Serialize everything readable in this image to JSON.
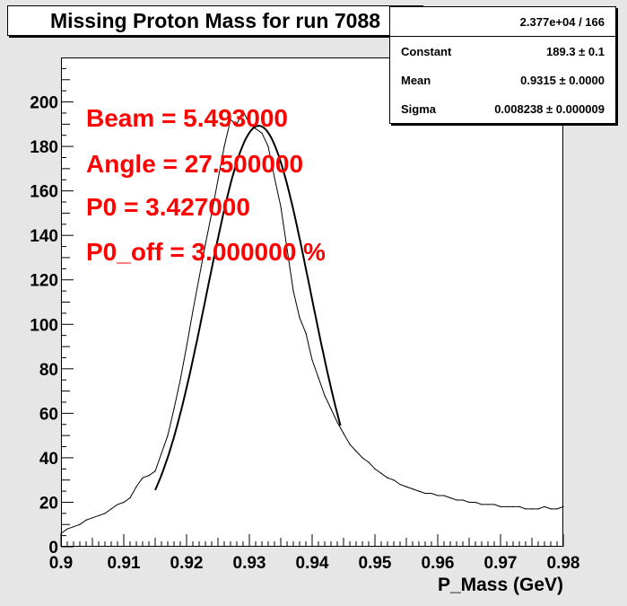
{
  "chart_data": {
    "type": "line",
    "title": "Missing Proton Mass for run 7088",
    "xlabel": "P_Mass (GeV)",
    "ylabel": "",
    "xlim": [
      0.9,
      0.98
    ],
    "ylim": [
      0,
      220
    ],
    "x_ticks": [
      "0.9",
      "0.91",
      "0.92",
      "0.93",
      "0.94",
      "0.95",
      "0.96",
      "0.97",
      "0.98"
    ],
    "y_ticks": [
      "0",
      "20",
      "40",
      "60",
      "80",
      "100",
      "120",
      "140",
      "160",
      "180",
      "200"
    ],
    "stats": {
      "entries": "2.377e+04 / 166",
      "rows": [
        {
          "label": "Constant",
          "value": "189.3 ± 0.1"
        },
        {
          "label": "Mean",
          "value": "0.9315 ± 0.0000"
        },
        {
          "label": "Sigma",
          "value": "0.008238 ± 0.000009"
        }
      ]
    },
    "annotations": [
      "Beam = 5.493000",
      "Angle = 27.500000",
      "P0 = 3.427000",
      "P0_off = 3.000000 %"
    ],
    "fit": {
      "constant": 189.3,
      "mean": 0.9315,
      "sigma": 0.008238,
      "x_range": [
        0.915,
        0.9445
      ]
    },
    "series": [
      {
        "values_x": [
          0.9,
          0.901,
          0.902,
          0.903,
          0.904,
          0.905,
          0.906,
          0.907,
          0.908,
          0.909,
          0.91,
          0.911,
          0.912,
          0.913,
          0.914,
          0.915,
          0.916,
          0.917,
          0.918,
          0.919,
          0.92,
          0.921,
          0.922,
          0.923,
          0.924,
          0.925,
          0.926,
          0.927,
          0.928,
          0.929,
          0.93,
          0.931,
          0.932,
          0.933,
          0.934,
          0.935,
          0.936,
          0.937,
          0.938,
          0.939,
          0.94,
          0.941,
          0.942,
          0.943,
          0.944,
          0.945,
          0.946,
          0.947,
          0.948,
          0.949,
          0.95,
          0.951,
          0.952,
          0.953,
          0.954,
          0.955,
          0.956,
          0.957,
          0.958,
          0.959,
          0.96,
          0.961,
          0.962,
          0.963,
          0.964,
          0.965,
          0.966,
          0.967,
          0.968,
          0.969,
          0.97,
          0.971,
          0.972,
          0.973,
          0.974,
          0.975,
          0.976,
          0.977,
          0.978,
          0.979,
          0.98
        ],
        "values_y": [
          6,
          8,
          9,
          10,
          12,
          13,
          14,
          15,
          17,
          19,
          20,
          22,
          27,
          31,
          32,
          34,
          42,
          50,
          62,
          75,
          90,
          106,
          121,
          136,
          150,
          165,
          180,
          192,
          190,
          196,
          190,
          188,
          186,
          180,
          166,
          153,
          134,
          115,
          103,
          96,
          84,
          76,
          68,
          62,
          56,
          51,
          46,
          43,
          40,
          38,
          35,
          33,
          31,
          30,
          28,
          27,
          26,
          25,
          24,
          24,
          23,
          23,
          22,
          21,
          21,
          20,
          20,
          19,
          19,
          19,
          18,
          18,
          18,
          18,
          17,
          17,
          17,
          18,
          17,
          17,
          18
        ]
      }
    ]
  }
}
